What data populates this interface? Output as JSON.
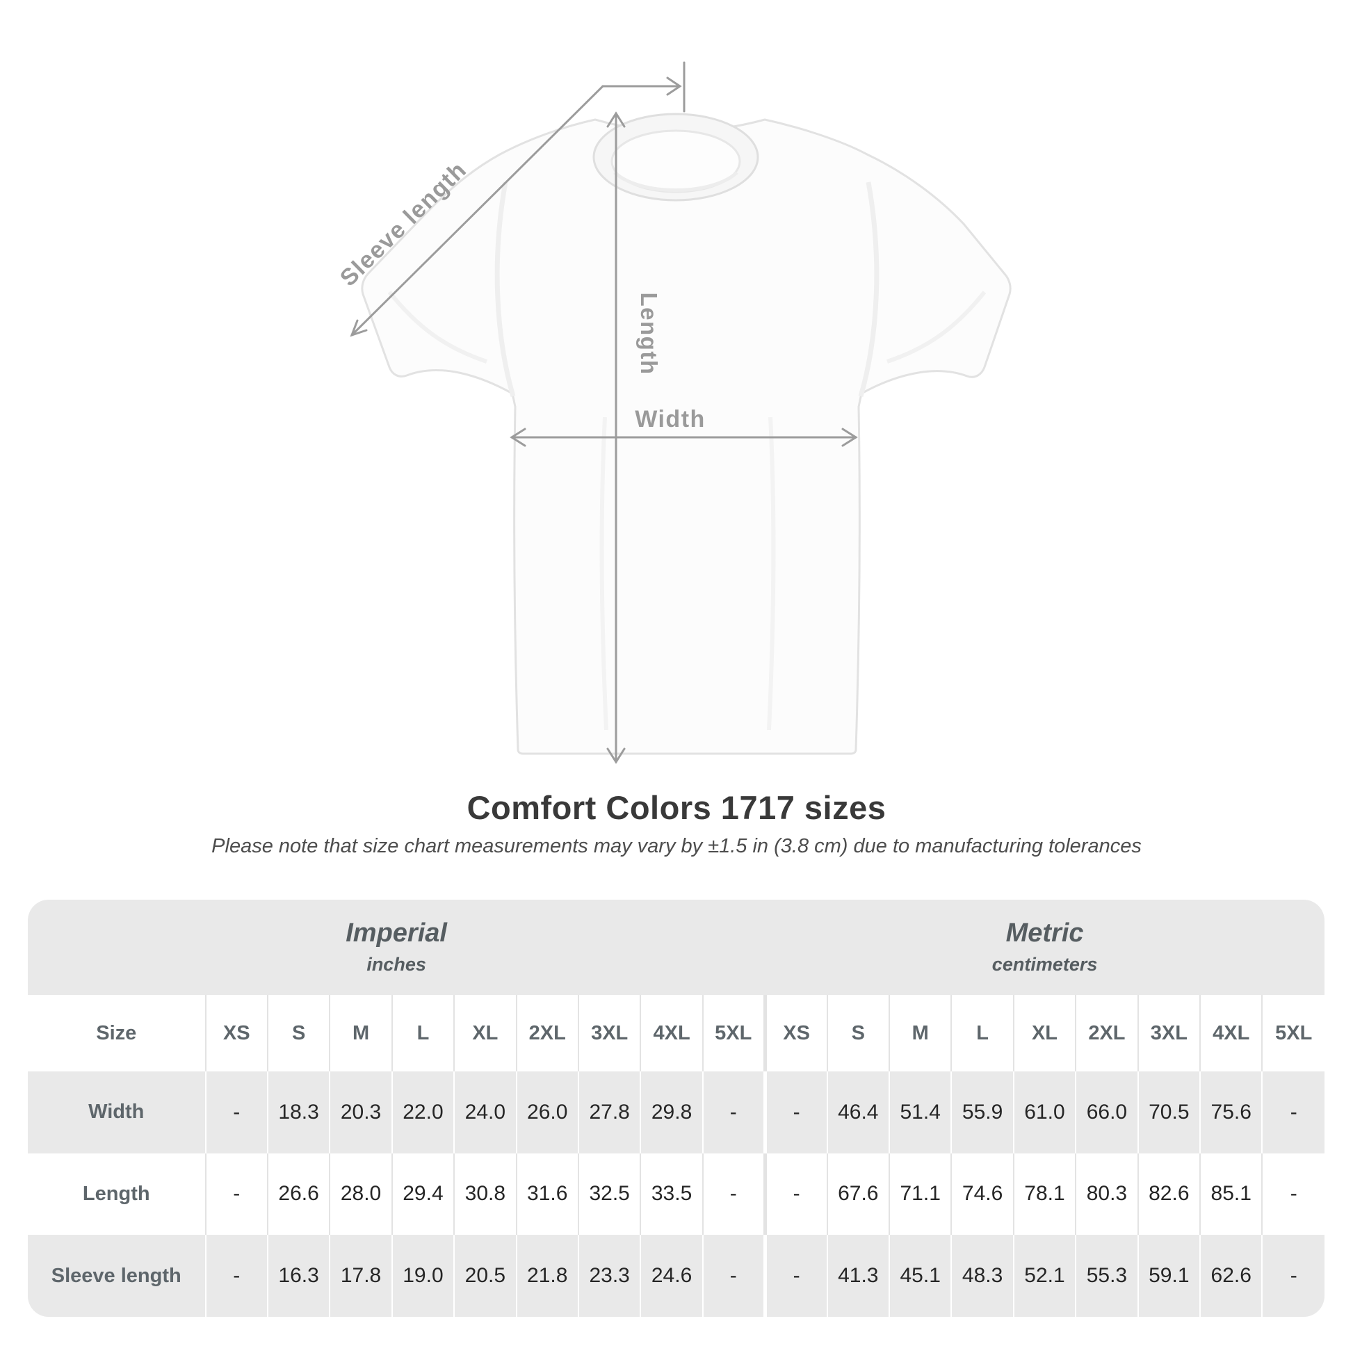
{
  "diagram": {
    "labels": {
      "sleeve_length": "Sleeve length",
      "length": "Length",
      "width": "Width"
    }
  },
  "chart_data": {
    "type": "table",
    "title": "Comfort Colors 1717 sizes",
    "subtitle": "Please note that size chart measurements may vary by ±1.5 in (3.8 cm) due to manufacturing tolerances",
    "size_column_header": "Size",
    "column_groups": [
      {
        "label": "Imperial",
        "unit": "inches"
      },
      {
        "label": "Metric",
        "unit": "centimeters"
      }
    ],
    "sizes": [
      "XS",
      "S",
      "M",
      "L",
      "XL",
      "2XL",
      "3XL",
      "4XL",
      "5XL"
    ],
    "rows": [
      {
        "label": "Width",
        "imperial": [
          "-",
          "18.3",
          "20.3",
          "22.0",
          "24.0",
          "26.0",
          "27.8",
          "29.8",
          "-"
        ],
        "metric": [
          "-",
          "46.4",
          "51.4",
          "55.9",
          "61.0",
          "66.0",
          "70.5",
          "75.6",
          "-"
        ]
      },
      {
        "label": "Length",
        "imperial": [
          "-",
          "26.6",
          "28.0",
          "29.4",
          "30.8",
          "31.6",
          "32.5",
          "33.5",
          "-"
        ],
        "metric": [
          "-",
          "67.6",
          "71.1",
          "74.6",
          "78.1",
          "80.3",
          "82.6",
          "85.1",
          "-"
        ]
      },
      {
        "label": "Sleeve length",
        "imperial": [
          "-",
          "16.3",
          "17.8",
          "19.0",
          "20.5",
          "21.8",
          "23.3",
          "24.6",
          "-"
        ],
        "metric": [
          "-",
          "41.3",
          "45.1",
          "48.3",
          "52.1",
          "55.3",
          "59.1",
          "62.6",
          "-"
        ]
      }
    ]
  },
  "colors": {
    "arrow_gray": "#9c9c9c",
    "measure_label_gray": "#9a9a9a",
    "table_band_gray": "#e9e9e9",
    "header_text": "#5e666b",
    "value_text": "#262626",
    "title_text": "#393939"
  }
}
